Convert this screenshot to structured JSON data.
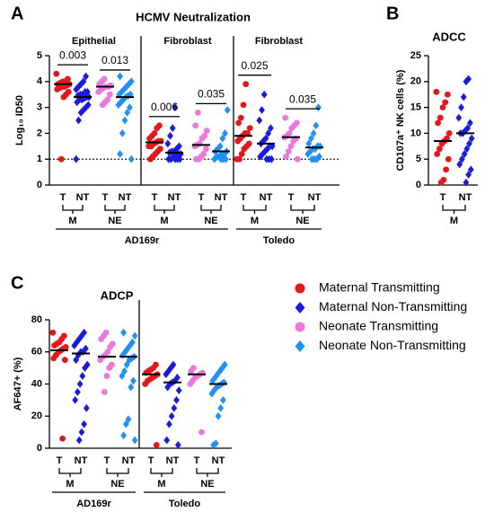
{
  "legend": [
    {
      "name": "Maternal Transmitting",
      "color": "#e8161b",
      "marker": "circle"
    },
    {
      "name": "Maternal Non-Transmitting",
      "color": "#1a1ae6",
      "marker": "diamond"
    },
    {
      "name": "Neonate Transmitting",
      "color": "#ee77dd",
      "marker": "circle"
    },
    {
      "name": "Neonate Non-Transmitting",
      "color": "#1e90ff",
      "marker": "diamond"
    }
  ],
  "chart_data": [
    {
      "type": "strip",
      "panel_label": "A",
      "title": "HCMV Neutralization",
      "ylabel": "Log₁₀ ID50",
      "ylim": [
        0,
        5
      ],
      "yticks": [
        0,
        1,
        2,
        3,
        4,
        5
      ],
      "reference_line": 1,
      "sections": [
        "Epithelial",
        "Fibroblast",
        "Fibroblast"
      ],
      "categories": [
        "T",
        "NT",
        "T",
        "NT",
        "T",
        "NT",
        "T",
        "NT",
        "T",
        "NT",
        "T",
        "NT"
      ],
      "groups": [
        "M",
        "NE",
        "M",
        "NE",
        "M",
        "NE"
      ],
      "strains": [
        "AD169r",
        "Toledo"
      ],
      "comparisons": [
        "0.003",
        "0.013",
        "0.006",
        "0.035",
        "0.025",
        "0.035"
      ],
      "series": [
        {
          "values": [
            [
              4.3,
              4.1,
              4.0,
              4.0,
              3.95,
              3.9,
              3.9,
              3.85,
              3.8,
              3.8,
              3.75,
              3.7,
              3.6,
              3.5,
              3.4,
              1.0
            ],
            [
              2.3,
              2.2,
              2.0,
              1.9,
              1.8,
              1.7,
              1.7,
              1.65,
              1.6,
              1.5,
              1.5,
              1.4,
              1.3,
              1.2,
              1.1,
              1.0
            ],
            [
              3.9,
              3.1,
              2.6,
              2.4,
              2.2,
              2.0,
              2.0,
              1.9,
              1.8,
              1.7,
              1.6,
              1.5,
              1.4,
              1.2,
              1.0,
              1.0
            ]
          ],
          "medians": [
            3.9,
            1.65,
            1.9
          ]
        },
        {
          "values": [
            [
              4.2,
              4.0,
              3.9,
              3.8,
              3.7,
              3.6,
              3.6,
              3.5,
              3.5,
              3.45,
              3.4,
              3.4,
              3.35,
              3.3,
              3.3,
              3.2,
              3.1,
              3.0,
              2.9,
              2.8,
              2.5,
              1.0
            ],
            [
              3.0,
              2.2,
              1.9,
              1.6,
              1.5,
              1.4,
              1.3,
              1.3,
              1.25,
              1.2,
              1.2,
              1.1,
              1.1,
              1.0,
              1.0,
              1.0,
              1.0,
              1.0
            ],
            [
              3.5,
              2.9,
              2.5,
              2.2,
              2.0,
              1.8,
              1.7,
              1.6,
              1.5,
              1.5,
              1.4,
              1.3,
              1.2,
              1.1,
              1.0,
              1.0,
              1.0
            ]
          ],
          "medians": [
            3.4,
            1.25,
            1.6
          ]
        },
        {
          "values": [
            [
              4.1,
              4.0,
              3.9,
              3.85,
              3.8,
              3.8,
              3.75,
              3.7,
              3.6,
              3.5,
              3.3,
              3.2,
              3.1
            ],
            [
              2.8,
              2.3,
              2.1,
              1.9,
              1.8,
              1.6,
              1.55,
              1.5,
              1.4,
              1.2,
              1.1,
              1.0,
              1.0
            ],
            [
              2.6,
              2.4,
              2.3,
              2.2,
              2.0,
              1.9,
              1.85,
              1.8,
              1.7,
              1.5,
              1.3,
              1.1,
              1.0
            ]
          ],
          "medians": [
            3.8,
            1.55,
            1.85
          ]
        },
        {
          "values": [
            [
              4.2,
              4.0,
              3.9,
              3.8,
              3.7,
              3.6,
              3.5,
              3.5,
              3.45,
              3.4,
              3.3,
              3.2,
              3.1,
              3.0,
              2.8,
              2.5,
              2.0,
              1.2,
              1.0
            ],
            [
              2.9,
              2.0,
              1.8,
              1.5,
              1.4,
              1.3,
              1.3,
              1.2,
              1.2,
              1.1,
              1.1,
              1.0,
              1.0,
              1.0,
              1.0
            ],
            [
              3.0,
              2.3,
              2.0,
              1.8,
              1.6,
              1.5,
              1.5,
              1.4,
              1.4,
              1.3,
              1.2,
              1.1,
              1.0,
              1.0,
              1.0
            ]
          ],
          "medians": [
            3.4,
            1.3,
            1.45
          ]
        }
      ]
    },
    {
      "type": "strip",
      "panel_label": "B",
      "title": "ADCC",
      "ylabel": "CD107a⁺ NK cells (%)",
      "ylim": [
        0,
        25
      ],
      "yticks": [
        0,
        5,
        10,
        15,
        20,
        25
      ],
      "categories": [
        "T",
        "NT"
      ],
      "groups": [
        "M"
      ],
      "series": [
        {
          "values": [
            [
              18,
              17.5,
              16,
              15,
              13,
              12,
              10,
              9,
              8.5,
              8,
              7,
              6,
              5,
              3,
              1,
              0.5
            ]
          ],
          "medians": [
            8.5
          ]
        },
        {
          "values": [
            [
              20.5,
              20,
              17,
              15,
              13,
              12,
              11,
              10.5,
              10,
              10,
              9,
              8,
              7,
              6,
              5,
              4,
              3,
              2,
              0.5
            ]
          ],
          "medians": [
            10
          ]
        }
      ]
    },
    {
      "type": "strip",
      "panel_label": "C",
      "title": "ADCP",
      "ylabel": "AF647+ (%)",
      "ylim": [
        0,
        80
      ],
      "yticks": [
        0,
        20,
        40,
        60,
        80
      ],
      "categories": [
        "T",
        "NT",
        "T",
        "NT",
        "T",
        "NT",
        "T",
        "NT"
      ],
      "groups": [
        "M",
        "NE",
        "M",
        "NE"
      ],
      "strains": [
        "AD169r",
        "Toledo"
      ],
      "series": [
        {
          "values": [
            [
              72,
              70,
              68,
              66,
              65,
              64,
              63,
              62,
              61,
              60,
              58,
              56,
              55,
              6
            ],
            [
              52,
              50,
              49,
              48,
              47,
              46,
              45,
              44,
              43,
              42,
              40,
              2
            ]
          ],
          "medians": [
            61,
            46
          ]
        },
        {
          "values": [
            [
              72,
              70,
              68,
              66,
              64,
              62,
              60,
              60,
              58,
              55,
              52,
              50,
              45,
              40,
              35,
              30,
              25,
              15,
              10,
              5
            ],
            [
              52,
              50,
              48,
              46,
              44,
              42,
              41,
              40,
              38,
              36,
              30,
              25,
              20,
              15,
              5,
              2
            ]
          ],
          "medians": [
            59,
            41
          ]
        },
        {
          "values": [
            [
              72,
              70,
              68,
              65,
              63,
              60,
              58,
              57,
              55,
              52,
              50,
              45,
              35
            ],
            [
              50,
              48,
              47,
              46,
              45,
              44,
              42,
              40,
              10
            ]
          ],
          "medians": [
            57,
            46
          ]
        },
        {
          "values": [
            [
              72,
              70,
              66,
              64,
              62,
              60,
              58,
              57,
              56,
              55,
              52,
              48,
              45,
              42,
              38,
              18,
              15,
              8,
              5
            ],
            [
              52,
              50,
              48,
              46,
              44,
              42,
              41,
              40,
              39,
              38,
              36,
              34,
              30,
              25,
              20,
              3,
              2
            ]
          ],
          "medians": [
            57,
            40
          ]
        }
      ]
    }
  ]
}
